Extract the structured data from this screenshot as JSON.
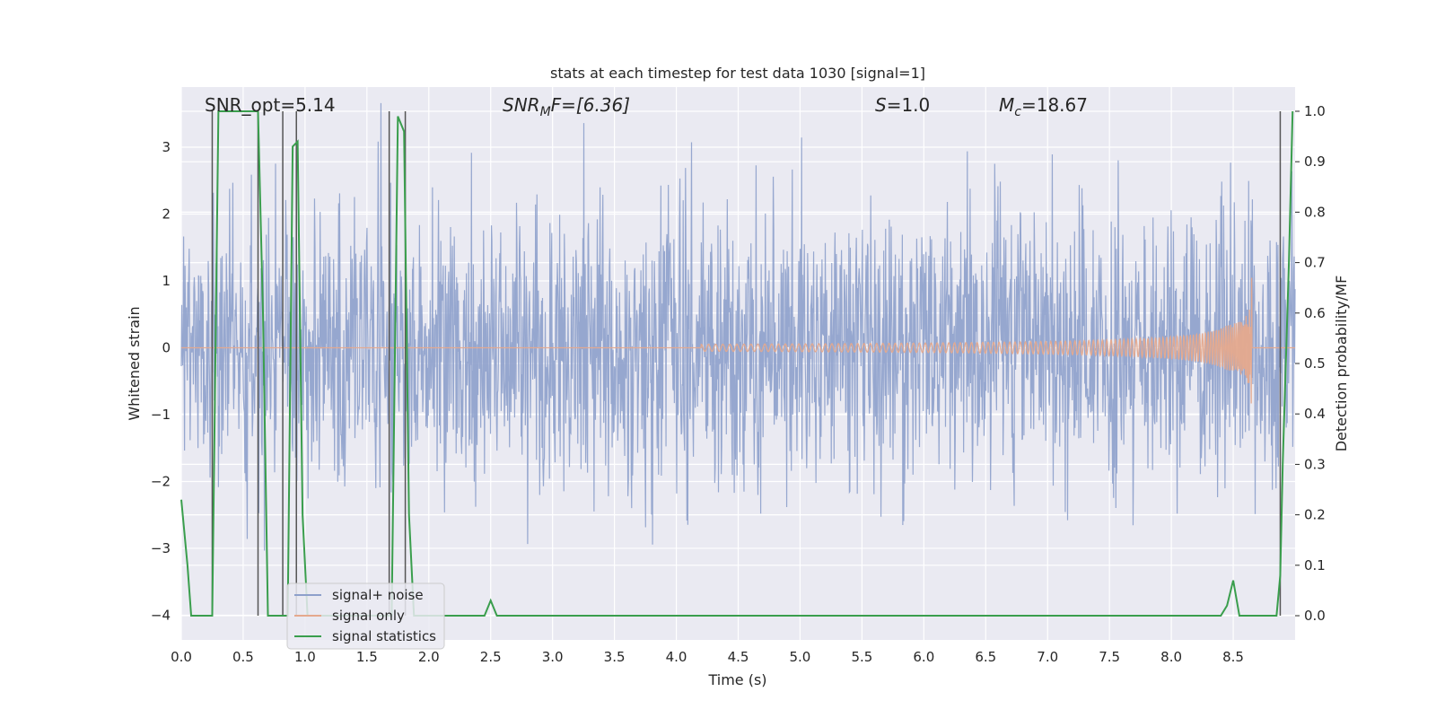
{
  "chart_data": {
    "type": "line",
    "title": "stats at each timestep for test data 1030 [signal=1]",
    "xlabel": "Time (s)",
    "ylabel_left": "Whitened strain",
    "ylabel_right": "Detection probability/MF",
    "xlim": [
      0.0,
      9.0
    ],
    "ylim_left": [
      -4.37,
      3.9
    ],
    "ylim_right": [
      -0.048,
      1.048
    ],
    "x_ticks": [
      0.0,
      0.5,
      1.0,
      1.5,
      2.0,
      2.5,
      3.0,
      3.5,
      4.0,
      4.5,
      5.0,
      5.5,
      6.0,
      6.5,
      7.0,
      7.5,
      8.0,
      8.5
    ],
    "x_tick_labels": [
      "0.0",
      "0.5",
      "1.0",
      "1.5",
      "2.0",
      "2.5",
      "3.0",
      "3.5",
      "4.0",
      "4.5",
      "5.0",
      "5.5",
      "6.0",
      "6.5",
      "7.0",
      "7.5",
      "8.0",
      "8.5"
    ],
    "y_left_ticks": [
      -4,
      -3,
      -2,
      -1,
      0,
      1,
      2,
      3
    ],
    "y_left_tick_labels": [
      "−4",
      "−3",
      "−2",
      "−1",
      "0",
      "1",
      "2",
      "3"
    ],
    "y_right_ticks": [
      0.0,
      0.1,
      0.2,
      0.3,
      0.4,
      0.5,
      0.6,
      0.7,
      0.8,
      0.9,
      1.0
    ],
    "y_right_tick_labels": [
      "0.0",
      "0.1",
      "0.2",
      "0.3",
      "0.4",
      "0.5",
      "0.6",
      "0.7",
      "0.8",
      "0.9",
      "1.0"
    ],
    "grid": true,
    "legend_position": "lower-left",
    "annotations": {
      "snr_opt": "SNR_opt=5.14",
      "snr_mf_base": "SNR",
      "snr_mf_sub": "M",
      "snr_mf_rest": "F=[6.36]",
      "s_var": "S",
      "s_rest": "=1.0",
      "mc_base": "M",
      "mc_sub": "c",
      "mc_rest": "=18.67"
    },
    "series": [
      {
        "name": "signal+ noise",
        "color": "#8da0cb",
        "axis": "left",
        "kind": "noise",
        "envelope_estimate": [
          2.4,
          -2.4
        ]
      },
      {
        "name": "signal only",
        "color": "#e5a98d",
        "axis": "left",
        "kind": "chirp",
        "x_start": 4.2,
        "x_peak": 8.65,
        "peak_amplitude": 1.05
      },
      {
        "name": "signal statistics",
        "color": "#3a9e4d",
        "axis": "right",
        "x": [
          0.0,
          0.05,
          0.08,
          0.15,
          0.25,
          0.3,
          0.35,
          0.45,
          0.55,
          0.62,
          0.66,
          0.7,
          0.76,
          0.8,
          0.82,
          0.86,
          0.9,
          0.94,
          0.98,
          1.02,
          1.1,
          1.5,
          1.62,
          1.7,
          1.75,
          1.8,
          1.84,
          1.88,
          1.92,
          2.0,
          2.45,
          2.5,
          2.55,
          3.0,
          4.0,
          5.0,
          6.0,
          7.0,
          8.0,
          8.4,
          8.45,
          8.5,
          8.55,
          8.7,
          8.85,
          8.88,
          8.9,
          8.95,
          8.98
        ],
        "y": [
          0.23,
          0.1,
          0.0,
          0.0,
          0.0,
          1.0,
          1.0,
          1.0,
          1.0,
          1.0,
          0.6,
          0.0,
          0.0,
          0.0,
          0.0,
          0.0,
          0.93,
          0.94,
          0.2,
          0.0,
          0.0,
          0.0,
          0.0,
          0.0,
          0.99,
          0.96,
          0.2,
          0.0,
          0.0,
          0.0,
          0.0,
          0.03,
          0.0,
          0.0,
          0.0,
          0.0,
          0.0,
          0.0,
          0.0,
          0.0,
          0.02,
          0.07,
          0.0,
          0.0,
          0.0,
          0.08,
          0.3,
          0.7,
          1.0
        ]
      }
    ],
    "vertical_lines": [
      0.25,
      0.62,
      0.82,
      0.93,
      1.68,
      1.81,
      8.88
    ],
    "vertical_lines_color": "#555555",
    "background_color": "#eaeaf2",
    "grid_color": "#ffffff"
  }
}
